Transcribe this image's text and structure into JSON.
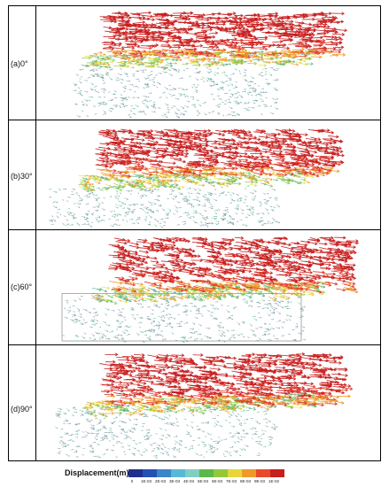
{
  "panels": [
    {
      "label": "(a)0°"
    },
    {
      "label": "(b)30°"
    },
    {
      "label": "(c)60°"
    },
    {
      "label": "(d)90°"
    }
  ],
  "legend": {
    "title": "Displacement(m)",
    "colors": [
      "#1f2f8f",
      "#2350b4",
      "#3a86c9",
      "#58b9d6",
      "#7fd0c2",
      "#5db84a",
      "#94c83c",
      "#e7d63a",
      "#ee9a2a",
      "#e7492a",
      "#c81e1e"
    ],
    "ticks": [
      "0",
      "1E-03",
      "2E-03",
      "3E-03",
      "4E-03",
      "5E-03",
      "6E-03",
      "7E-03",
      "8E-03",
      "9E-03",
      "1E-02"
    ]
  },
  "colors": {
    "top": "#c81e1e",
    "upper": "#e0392a",
    "mid": "#ee9a2a",
    "midlow": "#e7d63a",
    "low": "#7cc448",
    "lower": "#4fb08a",
    "base": "#6a8f9a"
  }
}
